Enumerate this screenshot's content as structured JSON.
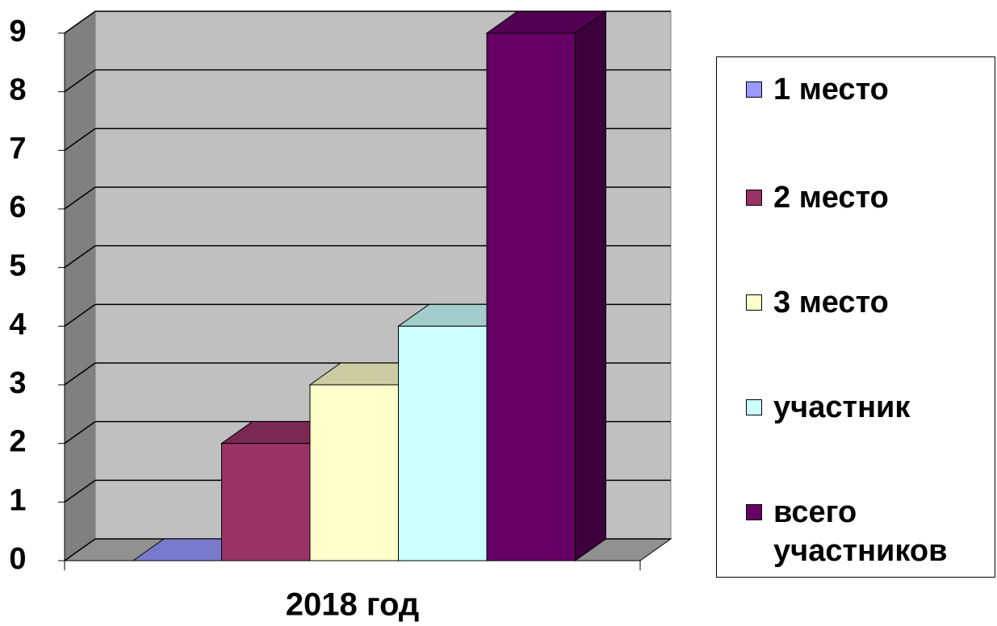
{
  "chart_data": {
    "type": "bar3d",
    "categories": [
      "2018 год"
    ],
    "series": [
      {
        "name": "1 место",
        "color": "#9999ff",
        "values": [
          0
        ]
      },
      {
        "name": "2 место",
        "color": "#993366",
        "values": [
          2
        ]
      },
      {
        "name": "3 место",
        "color": "#ffffcc",
        "values": [
          3
        ]
      },
      {
        "name": "участник",
        "color": "#ccffff",
        "values": [
          4
        ]
      },
      {
        "name": "всего участников",
        "color": "#660066",
        "values": [
          9
        ]
      }
    ],
    "ylim": [
      0,
      9
    ],
    "yticks": [
      0,
      1,
      2,
      3,
      4,
      5,
      6,
      7,
      8,
      9
    ],
    "grid": true,
    "legend": "right"
  }
}
